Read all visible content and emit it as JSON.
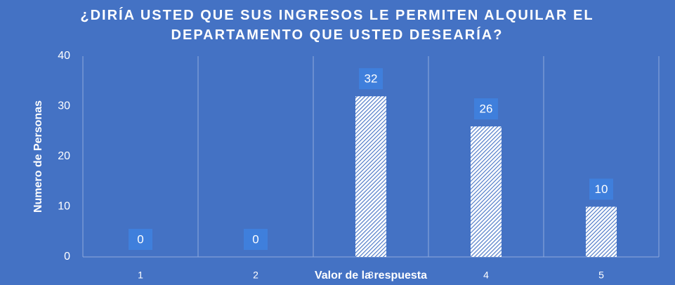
{
  "chart_data": {
    "type": "bar",
    "title": "¿DIRÍA USTED QUE SUS INGRESOS LE PERMITEN ALQUILAR EL DEPARTAMENTO QUE USTED DESEARÍA?",
    "x_label": "Valor de la respuesta",
    "y_label": "Numero de Personas",
    "categories": [
      "1",
      "2",
      "3",
      "4",
      "5"
    ],
    "values": [
      0,
      0,
      32,
      26,
      10
    ],
    "color": "#4472c4",
    "ylim": [
      0,
      40
    ],
    "yticks": [
      0,
      10,
      20,
      30,
      40
    ]
  }
}
